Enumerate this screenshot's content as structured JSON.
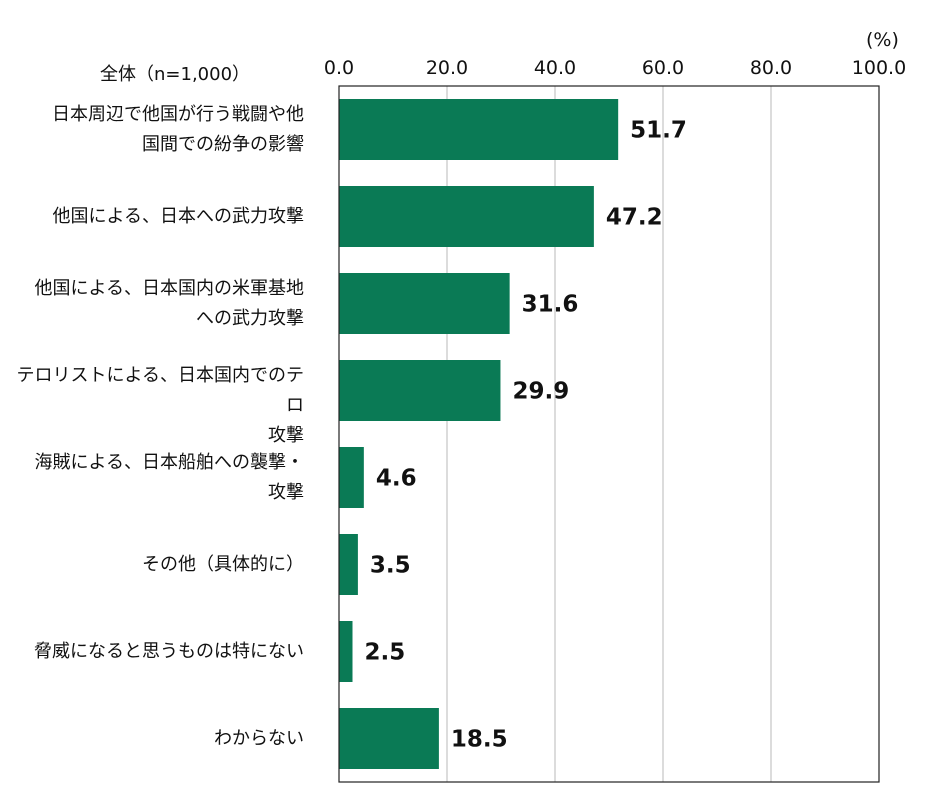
{
  "chart_data": {
    "type": "bar",
    "orientation": "horizontal",
    "sample_label": "全体（n=1,000）",
    "unit_label": "(%)",
    "xlim": [
      0,
      100
    ],
    "ticks": [
      "0.0",
      "20.0",
      "40.0",
      "60.0",
      "80.0",
      "100.0"
    ],
    "tick_values": [
      0,
      20,
      40,
      60,
      80,
      100
    ],
    "grid": true,
    "bar_color": "#0a7a55",
    "categories": [
      [
        "日本周辺で他国が行う戦闘や他",
        "国間での紛争の影響"
      ],
      [
        "他国による、日本への武力攻撃"
      ],
      [
        "他国による、日本国内の米軍基地",
        "への武力攻撃"
      ],
      [
        "テロリストによる、日本国内でのテロ",
        "攻撃"
      ],
      [
        "海賊による、日本船舶への襲撃・",
        "攻撃"
      ],
      [
        "その他（具体的に）"
      ],
      [
        "脅威になると思うものは特にない"
      ],
      [
        "わからない"
      ]
    ],
    "values": [
      51.7,
      47.2,
      31.6,
      29.9,
      4.6,
      3.5,
      2.5,
      18.5
    ],
    "value_labels": [
      "51.7",
      "47.2",
      "31.6",
      "29.9",
      "4.6",
      "3.5",
      "2.5",
      "18.5"
    ]
  }
}
